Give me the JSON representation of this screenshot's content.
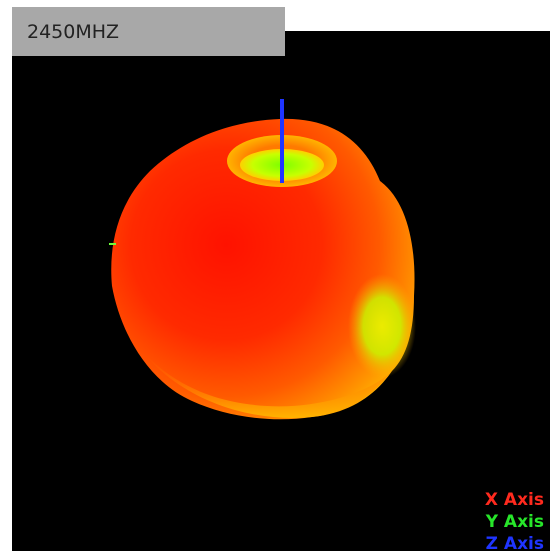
{
  "frequency_label": "2450MHZ",
  "legend": [
    {
      "label": "X Axis",
      "color": "#ff2a1e"
    },
    {
      "label": "Y Axis",
      "color": "#27e62a"
    },
    {
      "label": "Z Axis",
      "color": "#1f35ff"
    }
  ],
  "colors": {
    "background": "#000000",
    "tab": "#a8a8a8",
    "pattern_high": "#ff1a00",
    "pattern_mid": "#ff8a00",
    "pattern_low": "#d6ff00"
  }
}
